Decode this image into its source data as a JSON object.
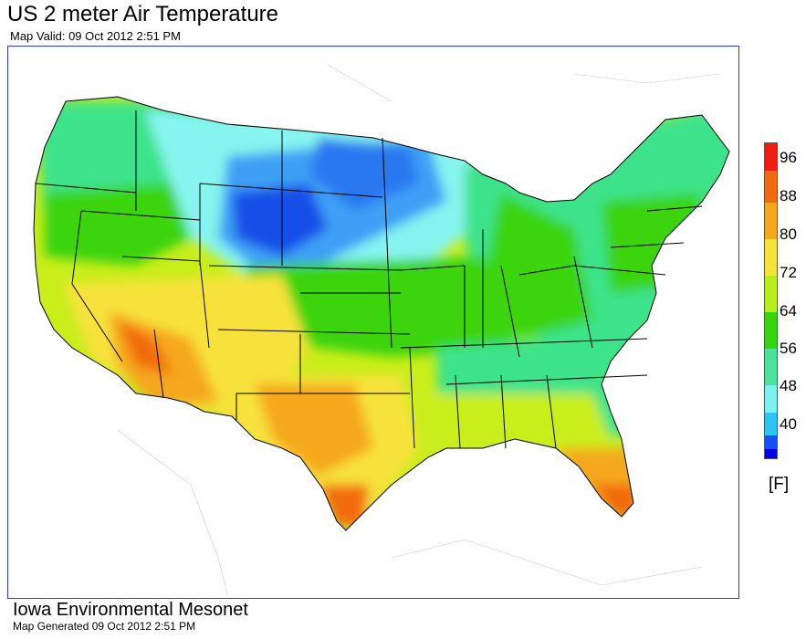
{
  "header": {
    "title": "US 2 meter Air Temperature",
    "subtitle": "Map Valid: 09 Oct 2012 2:51 PM"
  },
  "footer": {
    "org": "Iowa Environmental Mesonet",
    "generated": "Map Generated 09 Oct 2012 2:51 PM"
  },
  "legend": {
    "unit": "[F]",
    "labels": [
      "96",
      "88",
      "80",
      "72",
      "64",
      "56",
      "48",
      "40"
    ],
    "colors": [
      "#ee1c0f",
      "#f26a10",
      "#f5a81a",
      "#f7e23a",
      "#b8ee1a",
      "#35d60e",
      "#4be39c",
      "#7ff0f0",
      "#2bc4f5",
      "#1252f4",
      "#0000e6"
    ]
  },
  "map": {
    "region": "Continental United States",
    "variable": "2 meter air temperature",
    "colors": {
      "coldest": "#1650e8",
      "cold": "#3ca0f5",
      "cool": "#86f5ef",
      "mild": "#3ee38a",
      "moderate": "#3ad40e",
      "warm": "#c9ee1a",
      "hot": "#f7e23a",
      "very_hot": "#f5a81a",
      "extreme": "#f26a10",
      "border": "#2a3ad8"
    }
  }
}
